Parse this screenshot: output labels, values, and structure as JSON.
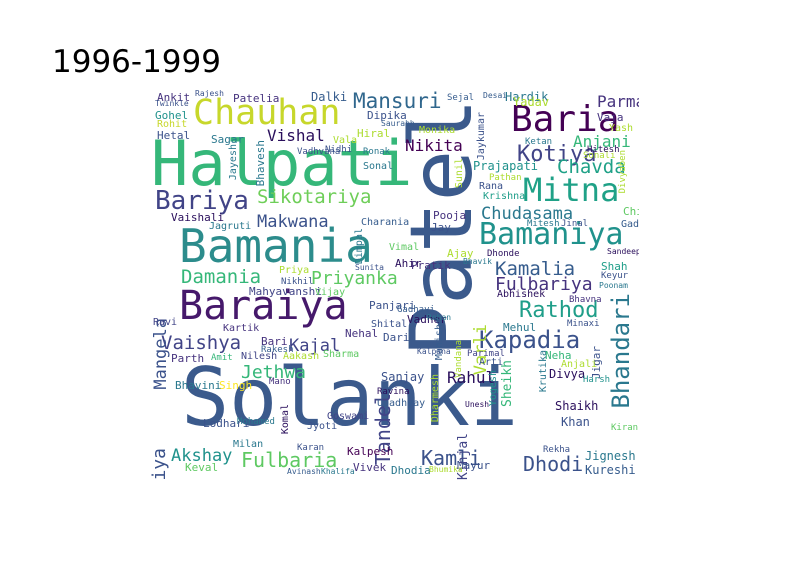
{
  "title": "1996-1999",
  "words": [
    {
      "text": "Solanki",
      "color": "#3b5a8c"
    },
    {
      "text": "Patel",
      "color": "#3b5a8c",
      "vertical": true
    },
    {
      "text": "Halpati",
      "color": "#35b779"
    },
    {
      "text": "Bamania",
      "color": "#2c8c8c"
    },
    {
      "text": "Baraiya",
      "color": "#46196b"
    },
    {
      "text": "Bamaniya",
      "color": "#20928c"
    },
    {
      "text": "Chauhan",
      "color": "#c7d72b"
    },
    {
      "text": "Baria",
      "color": "#440154"
    },
    {
      "text": "Mitna",
      "color": "#1fa187"
    },
    {
      "text": "Bhandari",
      "color": "#2a788e",
      "vertical": true
    },
    {
      "text": "Bariya",
      "color": "#414487"
    },
    {
      "text": "Sikotariya",
      "color": "#6ece58"
    },
    {
      "text": "Mansuri",
      "color": "#30678d"
    },
    {
      "text": "Kotiya",
      "color": "#414487"
    },
    {
      "text": "Chavda",
      "color": "#1fa187"
    },
    {
      "text": "Anjani",
      "color": "#35b779"
    },
    {
      "text": "Parmar",
      "color": "#46337e"
    },
    {
      "text": "Kapadia",
      "color": "#3b528b"
    },
    {
      "text": "Rathod",
      "color": "#1f9e89"
    },
    {
      "text": "Kamalia",
      "color": "#365c8d"
    },
    {
      "text": "Fulbariya",
      "color": "#46337e"
    },
    {
      "text": "Chudasama",
      "color": "#2a788e"
    },
    {
      "text": "Priyanka",
      "color": "#5ec962"
    },
    {
      "text": "Damania",
      "color": "#35b779"
    },
    {
      "text": "Makwana",
      "color": "#3b528b"
    },
    {
      "text": "Vaishya",
      "color": "#414487"
    },
    {
      "text": "Kajal",
      "color": "#414487"
    },
    {
      "text": "Jethwa",
      "color": "#35b779"
    },
    {
      "text": "Fulbaria",
      "color": "#5ec962"
    },
    {
      "text": "Akshay",
      "color": "#20928c"
    },
    {
      "text": "Kamli",
      "color": "#3b528b"
    },
    {
      "text": "Dhodi",
      "color": "#3b528b"
    },
    {
      "text": "Charaniya",
      "color": "#3b528b",
      "vertical": true
    },
    {
      "text": "Mangela",
      "color": "#3b528b",
      "vertical": true
    },
    {
      "text": "Tandel",
      "color": "#414487",
      "vertical": true
    },
    {
      "text": "Varli",
      "color": "#addc30",
      "vertical": true
    },
    {
      "text": "Vishal",
      "color": "#2a0f5c"
    },
    {
      "text": "Nikita",
      "color": "#440154"
    },
    {
      "text": "Rahul",
      "color": "#2a0f5c"
    },
    {
      "text": "Hardik",
      "color": "#2a788e"
    },
    {
      "text": "Patelia",
      "color": "#46337e"
    },
    {
      "text": "Dalki",
      "color": "#365c8d"
    },
    {
      "text": "Vaishali",
      "color": "#2a0f5c"
    },
    {
      "text": "Charania",
      "color": "#365c8d"
    },
    {
      "text": "Pooja",
      "color": "#46337e"
    },
    {
      "text": "Shaikh",
      "color": "#2a0f5c"
    },
    {
      "text": "Khan",
      "color": "#3b528b"
    },
    {
      "text": "Jignesh",
      "color": "#2a788e"
    },
    {
      "text": "Kureshi",
      "color": "#365c8d"
    },
    {
      "text": "Divya",
      "color": "#2a0f5c"
    },
    {
      "text": "Mayur",
      "color": "#3b528b"
    },
    {
      "text": "Kinjal",
      "color": "#414487",
      "vertical": true
    },
    {
      "text": "Keval",
      "color": "#5ec962"
    },
    {
      "text": "Vivek",
      "color": "#46337e"
    },
    {
      "text": "Kalpesh",
      "color": "#440154"
    },
    {
      "text": "Dhodia",
      "color": "#2a788e"
    },
    {
      "text": "Sanjay",
      "color": "#3b528b"
    },
    {
      "text": "Parth",
      "color": "#46337e"
    },
    {
      "text": "Nilesh",
      "color": "#414487"
    },
    {
      "text": "Gohel",
      "color": "#20928c"
    },
    {
      "text": "Sagar",
      "color": "#2a788e"
    },
    {
      "text": "Hetal",
      "color": "#3b528b"
    },
    {
      "text": "Ankit",
      "color": "#46337e"
    },
    {
      "text": "Rohit",
      "color": "#c7d72b"
    },
    {
      "text": "Abhishek",
      "color": "#2a0f5c"
    },
    {
      "text": "Mehul",
      "color": "#2a788e"
    },
    {
      "text": "Neha",
      "color": "#35b779"
    },
    {
      "text": "Harsh",
      "color": "#20928c"
    },
    {
      "text": "Vadher",
      "color": "#2a0f5c"
    },
    {
      "text": "Panjari",
      "color": "#3b528b"
    },
    {
      "text": "Mahyavanshi",
      "color": "#414487"
    },
    {
      "text": "Vijay",
      "color": "#5ec962"
    },
    {
      "text": "Ravi",
      "color": "#414487"
    },
    {
      "text": "Shah",
      "color": "#1f9e89"
    },
    {
      "text": "Lodhari",
      "color": "#3b528b"
    },
    {
      "text": "Milan",
      "color": "#2a788e"
    },
    {
      "text": "Jyoti",
      "color": "#3b528b"
    },
    {
      "text": "Goswami",
      "color": "#414487"
    },
    {
      "text": "Mohamed",
      "color": "#2a788e"
    },
    {
      "text": "Kartik",
      "color": "#46337e"
    },
    {
      "text": "Hiral",
      "color": "#addc30"
    },
    {
      "text": "Sonal",
      "color": "#2a788e"
    },
    {
      "text": "Monika",
      "color": "#addc30"
    },
    {
      "text": "Dipika",
      "color": "#3b528b"
    },
    {
      "text": "Jagruti",
      "color": "#2a788e"
    },
    {
      "text": "Vimal",
      "color": "#5ec962"
    },
    {
      "text": "Ahir",
      "color": "#2a0f5c"
    },
    {
      "text": "Pratik",
      "color": "#46337e"
    },
    {
      "text": "Gadhvi",
      "color": "#365c8d"
    },
    {
      "text": "Jinal",
      "color": "#3b528b"
    },
    {
      "text": "Mitesh",
      "color": "#2a788e"
    },
    {
      "text": "Chirag",
      "color": "#5ec962"
    },
    {
      "text": "Krishna",
      "color": "#1f9e89"
    },
    {
      "text": "Prajapati",
      "color": "#20928c"
    },
    {
      "text": "Rana",
      "color": "#3b528b"
    },
    {
      "text": "Jay",
      "color": "#3b528b"
    },
    {
      "text": "Sharma",
      "color": "#5ec962"
    },
    {
      "text": "Manisha",
      "color": "#365c8d",
      "vertical": true
    },
    {
      "text": "Arti",
      "color": "#3b528b"
    },
    {
      "text": "Parimal",
      "color": "#414487"
    },
    {
      "text": "Dari",
      "color": "#3b528b"
    },
    {
      "text": "Shital",
      "color": "#3b528b"
    },
    {
      "text": "Nehal",
      "color": "#46337e"
    },
    {
      "text": "Singh",
      "color": "#fde725"
    },
    {
      "text": "Bhavini",
      "color": "#2a788e"
    },
    {
      "text": "Komal",
      "color": "#2a0f5c",
      "vertical": true
    },
    {
      "text": "Sonali",
      "color": "#addc30"
    },
    {
      "text": "Hitesh",
      "color": "#2a0f5c"
    },
    {
      "text": "Divyaben",
      "color": "#addc30",
      "vertical": true
    },
    {
      "text": "Yash",
      "color": "#addc30"
    },
    {
      "text": "Vaja",
      "color": "#46337e"
    },
    {
      "text": "Sejal",
      "color": "#365c8d"
    },
    {
      "text": "Desai",
      "color": "#365c8d"
    },
    {
      "text": "Yadav",
      "color": "#addc30"
    },
    {
      "text": "Rekha",
      "color": "#3b528b"
    },
    {
      "text": "Ketan",
      "color": "#2a788e"
    },
    {
      "text": "Pathan",
      "color": "#addc30"
    },
    {
      "text": "Keyur",
      "color": "#3b528b"
    },
    {
      "text": "Poonam",
      "color": "#2a788e"
    },
    {
      "text": "Bhavna",
      "color": "#46337e"
    },
    {
      "text": "Jigar",
      "color": "#3b528b",
      "vertical": true
    },
    {
      "text": "Kiran",
      "color": "#5ec962"
    },
    {
      "text": "Upadhyay",
      "color": "#365c8d"
    },
    {
      "text": "Ravina",
      "color": "#2a0f5c"
    },
    {
      "text": "Unesh",
      "color": "#2a0f5c"
    },
    {
      "text": "Dimpal",
      "color": "#2a788e",
      "vertical": true
    },
    {
      "text": "Sunita",
      "color": "#3b528b"
    },
    {
      "text": "Rajesh",
      "color": "#3b528b"
    },
    {
      "text": "Twinkle",
      "color": "#3b528b"
    },
    {
      "text": "Jayesh",
      "color": "#2a788e",
      "vertical": true
    },
    {
      "text": "Bhavesh",
      "color": "#2a788e",
      "vertical": true
    },
    {
      "text": "Vala",
      "color": "#addc30"
    },
    {
      "text": "Ronak",
      "color": "#2a788e"
    },
    {
      "text": "Nidhi",
      "color": "#3b528b"
    },
    {
      "text": "Vadhvana",
      "color": "#3b528b"
    },
    {
      "text": "Sunil",
      "color": "#addc30",
      "vertical": true
    },
    {
      "text": "Jaykumar",
      "color": "#3b528b",
      "vertical": true
    },
    {
      "text": "Saurabh",
      "color": "#365c8d"
    },
    {
      "text": "Kalpana",
      "color": "#3b528b"
    },
    {
      "text": "Bari",
      "color": "#46337e"
    },
    {
      "text": "Rakesh",
      "color": "#365c8d"
    },
    {
      "text": "Aakash",
      "color": "#addc30"
    },
    {
      "text": "Amit",
      "color": "#35b779"
    },
    {
      "text": "Mano",
      "color": "#46337e"
    },
    {
      "text": "Karan",
      "color": "#3b528b"
    },
    {
      "text": "Bhavik",
      "color": "#2a788e"
    },
    {
      "text": "Rohan",
      "color": "#2a788e"
    },
    {
      "text": "Avinash",
      "color": "#365c8d"
    },
    {
      "text": "Khalifa",
      "color": "#2a788e"
    },
    {
      "text": "Bhumika",
      "color": "#addc30"
    },
    {
      "text": "Sandeep",
      "color": "#2a0f5c"
    },
    {
      "text": "Gadhavi",
      "color": "#365c8d"
    },
    {
      "text": "Dhonde",
      "color": "#2a0f5c"
    },
    {
      "text": "Ajay",
      "color": "#addc30"
    },
    {
      "text": "Minaxi",
      "color": "#3b528b"
    },
    {
      "text": "Anjali",
      "color": "#addc30"
    },
    {
      "text": "Krutika",
      "color": "#2a788e",
      "vertical": true
    },
    {
      "text": "Yogesh",
      "color": "#20928c",
      "vertical": true
    },
    {
      "text": "Sheikh",
      "color": "#35b779",
      "vertical": true
    },
    {
      "text": "Vandana",
      "color": "#addc30",
      "vertical": true
    },
    {
      "text": "Dharmesh",
      "color": "#addc30",
      "vertical": true
    },
    {
      "text": "Priya",
      "color": "#addc30"
    },
    {
      "text": "Nikhil",
      "color": "#3b528b"
    }
  ]
}
